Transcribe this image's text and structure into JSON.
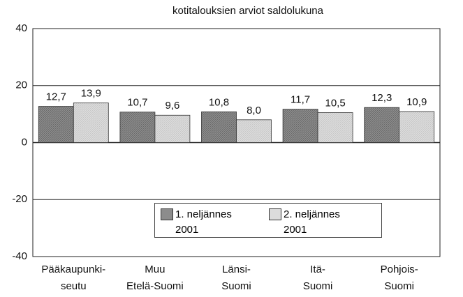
{
  "chart_data": {
    "type": "bar",
    "title": "kotitalouksien arviot saldolukuna",
    "categories": [
      [
        "Pääkaupunki-",
        "seutu"
      ],
      [
        "Muu",
        "Etelä-Suomi"
      ],
      [
        "Länsi-",
        "Suomi"
      ],
      [
        "Itä-",
        "Suomi"
      ],
      [
        "Pohjois-",
        "Suomi"
      ]
    ],
    "series": [
      {
        "name": "1. neljännes 2001",
        "color": "#8c8c8c",
        "values": [
          12.7,
          10.7,
          10.8,
          11.7,
          12.3
        ],
        "value_labels": [
          "12,7",
          "10,7",
          "10,8",
          "11,7",
          "12,3"
        ]
      },
      {
        "name": "2. neljännes 2001",
        "color": "#dcdcdc",
        "values": [
          13.9,
          9.6,
          8.0,
          10.5,
          10.9
        ],
        "value_labels": [
          "13,9",
          "9,6",
          "8,0",
          "10,5",
          "10,9"
        ]
      }
    ],
    "ylim": [
      -40,
      40
    ],
    "yticks": [
      -40,
      -20,
      0,
      20,
      40
    ],
    "grid": true
  }
}
